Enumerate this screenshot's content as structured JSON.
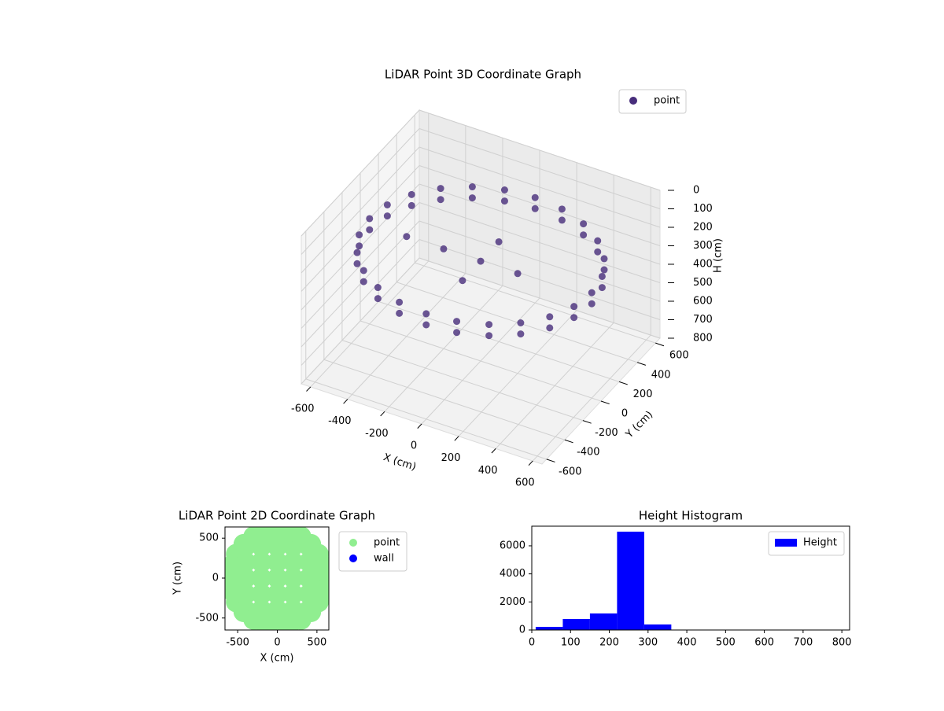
{
  "chart_data": [
    {
      "type": "scatter3d",
      "title": "LiDAR Point 3D Coordinate Graph",
      "xlabel": "X (cm)",
      "ylabel": "Y (cm)",
      "zlabel": "H (cm)",
      "xlim": [
        -650,
        650
      ],
      "ylim": [
        -650,
        650
      ],
      "zlim": [
        0,
        800
      ],
      "z_inverted": true,
      "xticks": [
        -600,
        -400,
        -200,
        0,
        200,
        400,
        600
      ],
      "yticks": [
        -600,
        -400,
        -200,
        0,
        200,
        400,
        600
      ],
      "zticks": [
        0,
        100,
        200,
        300,
        400,
        500,
        600,
        700,
        800
      ],
      "grid": true,
      "legend": "upper right",
      "series": [
        {
          "name": "point",
          "color": "#472d7b",
          "x": [
            600,
            580,
            520,
            424,
            300,
            155,
            0,
            -155,
            -300,
            -424,
            -520,
            -580,
            -600,
            -580,
            -520,
            -424,
            -300,
            -155,
            0,
            155,
            300,
            424,
            520,
            580,
            600,
            580,
            520,
            424,
            300,
            155,
            0,
            -155,
            -300,
            -424,
            -520,
            -580,
            -600,
            -580,
            -520,
            -424,
            -300,
            -155,
            0,
            155,
            300,
            424,
            520,
            580,
            0,
            -200,
            200,
            0,
            0,
            -400
          ],
          "y": [
            0,
            155,
            300,
            424,
            520,
            580,
            600,
            580,
            520,
            424,
            300,
            155,
            0,
            -155,
            -300,
            -424,
            -520,
            -580,
            -600,
            -580,
            -520,
            -424,
            -300,
            -155,
            0,
            155,
            300,
            424,
            520,
            580,
            600,
            580,
            520,
            424,
            300,
            155,
            0,
            -155,
            -300,
            -424,
            -520,
            -580,
            -600,
            -580,
            -520,
            -424,
            -300,
            -155,
            0,
            0,
            0,
            200,
            -200,
            0
          ],
          "z": [
            230,
            230,
            230,
            230,
            230,
            230,
            230,
            230,
            230,
            230,
            230,
            230,
            230,
            230,
            230,
            230,
            230,
            230,
            230,
            230,
            230,
            230,
            230,
            230,
            290,
            290,
            290,
            290,
            290,
            290,
            290,
            290,
            290,
            290,
            290,
            290,
            290,
            290,
            290,
            290,
            290,
            290,
            290,
            290,
            290,
            290,
            290,
            290,
            260,
            260,
            260,
            260,
            260,
            260
          ]
        }
      ]
    },
    {
      "type": "scatter",
      "title": "LiDAR Point 2D Coordinate Graph",
      "xlabel": "X (cm)",
      "ylabel": "Y (cm)",
      "xlim": [
        -660,
        650
      ],
      "ylim": [
        -650,
        640
      ],
      "xticks": [
        -500,
        0,
        500
      ],
      "yticks": [
        -500,
        0,
        500
      ],
      "legend": "outside right",
      "series": [
        {
          "name": "point",
          "color": "#90ee90",
          "x": [
            -600,
            -400,
            -400,
            -400,
            -400,
            -400,
            -200,
            -200,
            -200,
            -200,
            -200,
            0,
            0,
            0,
            0,
            0,
            0,
            0,
            200,
            200,
            200,
            200,
            200,
            400,
            400,
            400,
            400,
            400,
            600,
            600,
            580,
            520,
            424,
            300,
            155,
            0,
            -155,
            -300,
            -424,
            -520,
            -580,
            -600,
            -580,
            -520,
            -424,
            -300,
            -155,
            0,
            155,
            300,
            424,
            520,
            580
          ],
          "y": [
            0,
            -400,
            -200,
            0,
            200,
            400,
            -400,
            -200,
            0,
            200,
            400,
            -600,
            -400,
            -200,
            0,
            200,
            400,
            600,
            -400,
            -200,
            0,
            200,
            400,
            -400,
            -200,
            0,
            200,
            400,
            0,
            0,
            155,
            300,
            424,
            520,
            580,
            600,
            580,
            520,
            424,
            300,
            155,
            0,
            -155,
            -300,
            -424,
            -520,
            -580,
            -600,
            -580,
            -520,
            -424,
            -300,
            -155
          ]
        },
        {
          "name": "wall",
          "color": "#0000ff",
          "x": [],
          "y": []
        }
      ]
    },
    {
      "type": "histogram",
      "title": "Height Histogram",
      "xlim": [
        0,
        820
      ],
      "ylim": [
        0,
        7400
      ],
      "xticks": [
        0,
        100,
        200,
        300,
        400,
        500,
        600,
        700,
        800
      ],
      "yticks": [
        0,
        2000,
        4000,
        6000
      ],
      "legend": "upper right",
      "bins": [
        10,
        80,
        150,
        220,
        290,
        360,
        430,
        500,
        570,
        640,
        710,
        780
      ],
      "series": [
        {
          "name": "Height",
          "color": "#0000ff",
          "values": [
            224,
            785,
            1178,
            7009,
            393,
            20,
            10,
            10,
            10,
            10,
            10
          ]
        }
      ]
    }
  ]
}
